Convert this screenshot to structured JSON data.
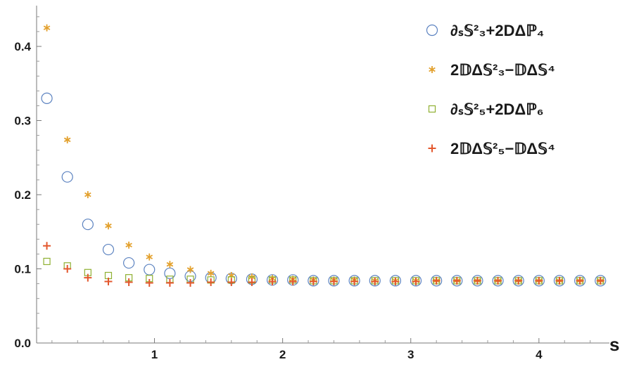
{
  "chart_data": {
    "type": "scatter",
    "xlabel": "s",
    "ylabel": "",
    "xlim": [
      0.08,
      4.55
    ],
    "ylim": [
      0,
      0.455
    ],
    "x_ticks": [
      1,
      2,
      3,
      4
    ],
    "y_ticks": [
      0.0,
      0.1,
      0.2,
      0.3,
      0.4
    ],
    "x_tick_labels": [
      "1",
      "2",
      "3",
      "4"
    ],
    "y_tick_labels": [
      "0.0",
      "0.1",
      "0.2",
      "0.3",
      "0.4"
    ],
    "legend_position": "top-right",
    "grid": false,
    "x": [
      0.16,
      0.32,
      0.48,
      0.64,
      0.8,
      0.96,
      1.12,
      1.28,
      1.44,
      1.6,
      1.76,
      1.92,
      2.08,
      2.24,
      2.4,
      2.56,
      2.72,
      2.88,
      3.04,
      3.2,
      3.36,
      3.52,
      3.68,
      3.84,
      4.0,
      4.16,
      4.32,
      4.48
    ],
    "series": [
      {
        "name": "∂ₛ𝕊²₃+2DΔℙ₄",
        "marker": "circle",
        "color": "#5b82c0",
        "values": [
          0.33,
          0.224,
          0.16,
          0.126,
          0.108,
          0.099,
          0.094,
          0.09,
          0.088,
          0.087,
          0.086,
          0.085,
          0.085,
          0.084,
          0.084,
          0.084,
          0.084,
          0.084,
          0.084,
          0.084,
          0.084,
          0.084,
          0.084,
          0.084,
          0.084,
          0.084,
          0.084,
          0.084
        ]
      },
      {
        "name": "2𝔻Δ𝕊²₃−𝔻Δ𝕊⁴",
        "marker": "star",
        "color": "#e3a12e",
        "values": [
          0.425,
          0.274,
          0.2,
          0.158,
          0.132,
          0.116,
          0.106,
          0.099,
          0.094,
          0.091,
          0.089,
          0.087,
          0.086,
          0.085,
          0.085,
          0.085,
          0.084,
          0.084,
          0.084,
          0.084,
          0.084,
          0.084,
          0.084,
          0.084,
          0.084,
          0.084,
          0.084,
          0.084
        ]
      },
      {
        "name": "∂ₛ𝕊²₅+2DΔℙ₆",
        "marker": "square",
        "color": "#8fb032",
        "values": [
          0.11,
          0.104,
          0.095,
          0.091,
          0.088,
          0.087,
          0.086,
          0.086,
          0.085,
          0.085,
          0.085,
          0.085,
          0.085,
          0.084,
          0.084,
          0.084,
          0.084,
          0.084,
          0.084,
          0.084,
          0.084,
          0.084,
          0.084,
          0.084,
          0.084,
          0.084,
          0.084,
          0.084
        ]
      },
      {
        "name": "2𝔻Δ𝕊²₅−𝔻Δ𝕊⁴",
        "marker": "plus",
        "color": "#e3572d",
        "values": [
          0.131,
          0.1,
          0.088,
          0.083,
          0.082,
          0.081,
          0.081,
          0.081,
          0.082,
          0.082,
          0.082,
          0.083,
          0.083,
          0.083,
          0.083,
          0.083,
          0.083,
          0.083,
          0.083,
          0.084,
          0.084,
          0.084,
          0.084,
          0.084,
          0.084,
          0.084,
          0.084,
          0.084
        ]
      }
    ]
  }
}
